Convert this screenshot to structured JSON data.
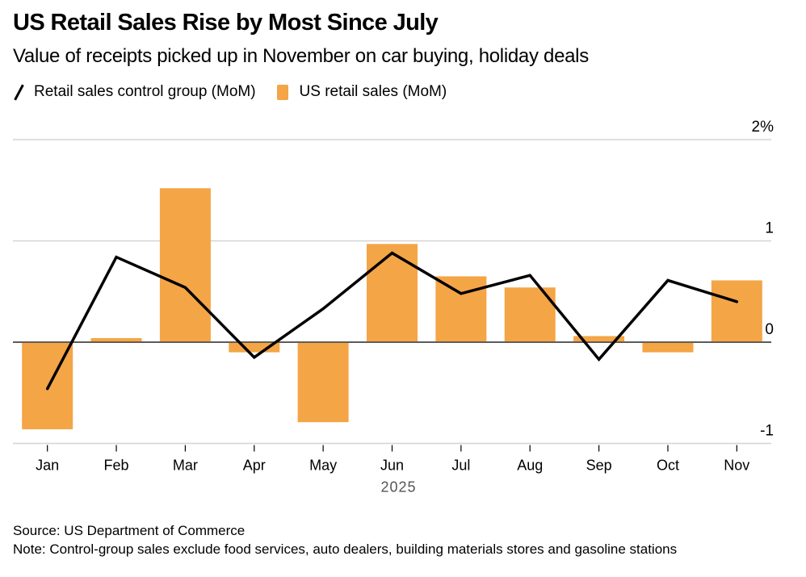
{
  "header": {
    "title": "US Retail Sales Rise by Most Since July",
    "subtitle": "Value of receipts picked up in November on car buying, holiday deals"
  },
  "legend": {
    "items": [
      {
        "label": "Retail sales control group (MoM)",
        "icon": "line-icon",
        "color": "#000000"
      },
      {
        "label": "US retail sales (MoM)",
        "icon": "square-swatch-icon",
        "color": "#F4A546"
      }
    ]
  },
  "colors": {
    "bar": "#F4A546",
    "line": "#000000",
    "grid": "#d4d4d4",
    "zero_line": "#444444",
    "year_label": "#555555"
  },
  "chart_data": {
    "type": "bar",
    "title": "US Retail Sales Rise by Most Since July",
    "subtitle": "Value of receipts picked up in November on car buying, holiday deals",
    "categories": [
      "Jan",
      "Feb",
      "Mar",
      "Apr",
      "May",
      "Jun",
      "Jul",
      "Aug",
      "Sep",
      "Oct",
      "Nov"
    ],
    "x_group_label": "2025",
    "series": [
      {
        "name": "US retail sales (MoM)",
        "type": "bar",
        "values": [
          -0.86,
          0.04,
          1.52,
          -0.1,
          -0.79,
          0.97,
          0.65,
          0.54,
          0.06,
          -0.1,
          0.61
        ]
      },
      {
        "name": "Retail sales control group (MoM)",
        "type": "line",
        "values": [
          -0.46,
          0.84,
          0.54,
          -0.15,
          0.33,
          0.88,
          0.48,
          0.66,
          -0.17,
          0.61,
          0.4
        ]
      }
    ],
    "yticks": [
      2,
      1,
      0,
      -1
    ],
    "ytick_labels": [
      "2%",
      "1",
      "0",
      "-1"
    ],
    "ylim": [
      -1,
      2
    ],
    "ylabel": "",
    "xlabel": "2025",
    "y_axis_position": "right",
    "grid": true,
    "legend_position": "top-left"
  },
  "footer": {
    "source": "Source: US Department of Commerce",
    "note": "Note: Control-group sales exclude food services, auto dealers, building materials stores and gasoline stations"
  }
}
